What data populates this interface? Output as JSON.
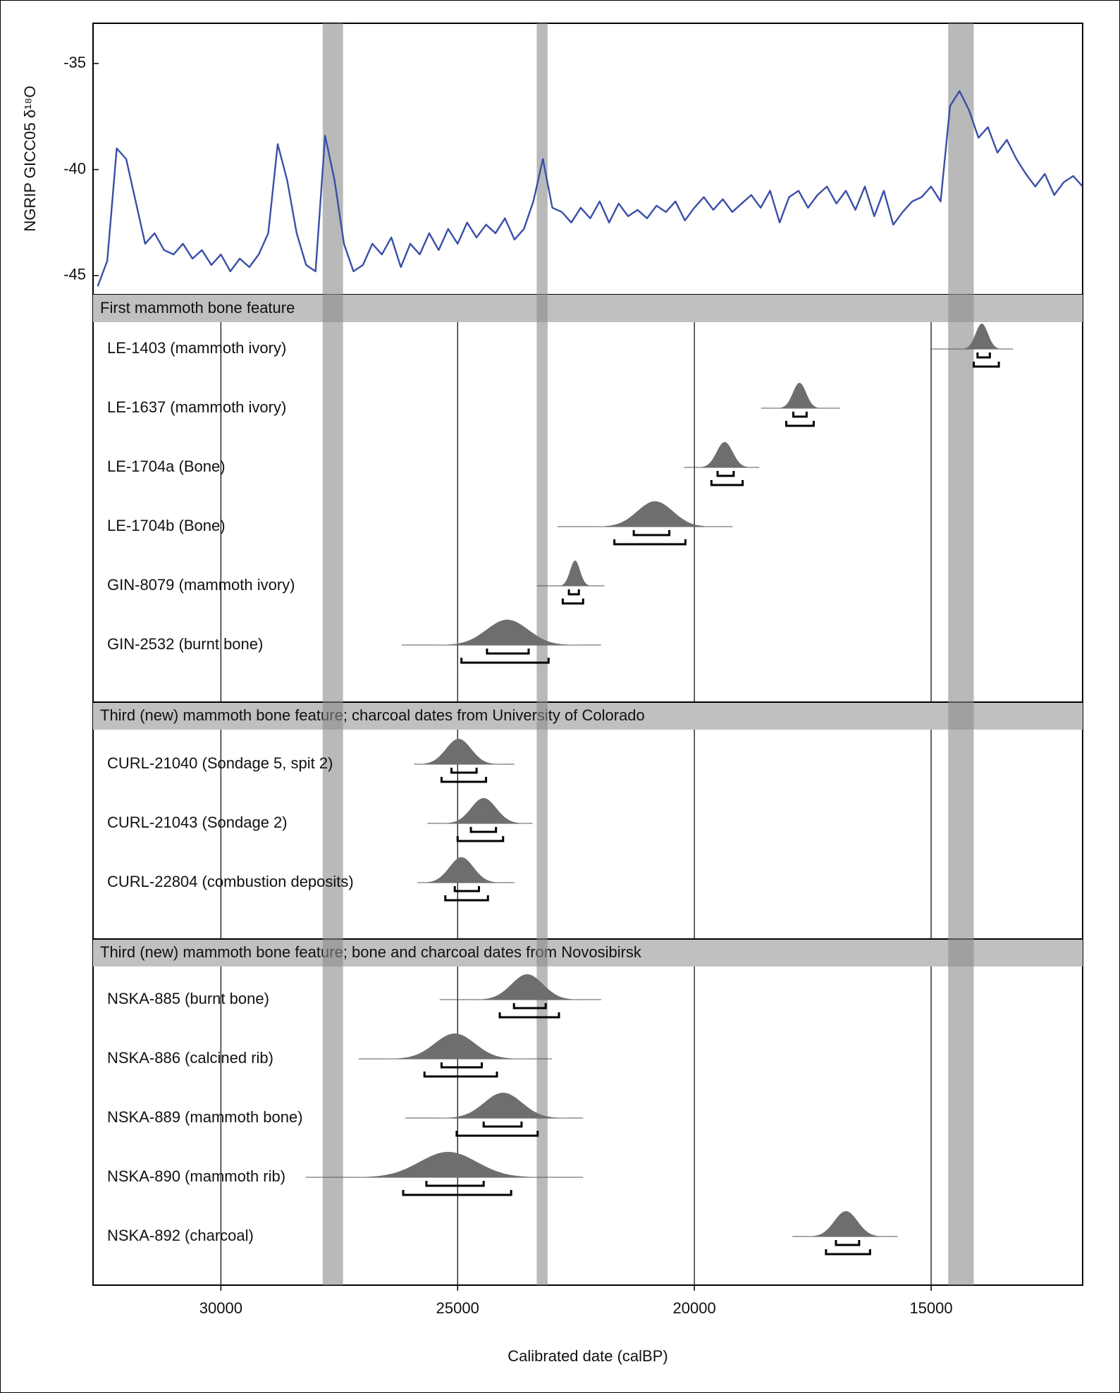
{
  "chart_data": [
    {
      "type": "line",
      "y_label": "NGRIP GICC05 δ¹⁸O",
      "color": "#3a4fa8",
      "xlim": [
        32700,
        11800
      ],
      "ylim": [
        -45.9,
        -33.1
      ],
      "yticks": [
        -35,
        -40,
        -45
      ],
      "bands": [
        [
          27850,
          27420
        ],
        [
          23330,
          23100
        ],
        [
          14640,
          14100
        ]
      ],
      "x": [
        32600,
        32400,
        32200,
        32000,
        31800,
        31600,
        31400,
        31200,
        31000,
        30800,
        30600,
        30400,
        30200,
        30000,
        29800,
        29600,
        29400,
        29200,
        29000,
        28800,
        28600,
        28400,
        28200,
        28000,
        27800,
        27600,
        27400,
        27200,
        27000,
        26800,
        26600,
        26400,
        26200,
        26000,
        25800,
        25600,
        25400,
        25200,
        25000,
        24800,
        24600,
        24400,
        24200,
        24000,
        23800,
        23600,
        23400,
        23200,
        23000,
        22800,
        22600,
        22400,
        22200,
        22000,
        21800,
        21600,
        21400,
        21200,
        21000,
        20800,
        20600,
        20400,
        20200,
        20000,
        19800,
        19600,
        19400,
        19200,
        19000,
        18800,
        18600,
        18400,
        18200,
        18000,
        17800,
        17600,
        17400,
        17200,
        17000,
        16800,
        16600,
        16400,
        16200,
        16000,
        15800,
        15600,
        15400,
        15200,
        15000,
        14800,
        14600,
        14400,
        14200,
        14000,
        13800,
        13600,
        13400,
        13200,
        13000,
        12800,
        12600,
        12400,
        12200,
        12000,
        11800
      ],
      "values": [
        -45.5,
        -44.3,
        -39.0,
        -39.5,
        -41.5,
        -43.5,
        -43.0,
        -43.8,
        -44.0,
        -43.5,
        -44.2,
        -43.8,
        -44.5,
        -44.0,
        -44.8,
        -44.2,
        -44.6,
        -44.0,
        -43.0,
        -38.8,
        -40.5,
        -43.0,
        -44.5,
        -44.8,
        -38.4,
        -40.5,
        -43.5,
        -44.8,
        -44.5,
        -43.5,
        -44.0,
        -43.2,
        -44.6,
        -43.5,
        -44.0,
        -43.0,
        -43.8,
        -42.8,
        -43.5,
        -42.5,
        -43.2,
        -42.6,
        -43.0,
        -42.3,
        -43.3,
        -42.8,
        -41.5,
        -39.5,
        -41.8,
        -42.0,
        -42.5,
        -41.8,
        -42.3,
        -41.5,
        -42.5,
        -41.6,
        -42.2,
        -41.9,
        -42.3,
        -41.7,
        -42.0,
        -41.5,
        -42.4,
        -41.8,
        -41.3,
        -41.9,
        -41.4,
        -42.0,
        -41.6,
        -41.2,
        -41.8,
        -41.0,
        -42.5,
        -41.3,
        -41.0,
        -41.8,
        -41.2,
        -40.8,
        -41.6,
        -41.0,
        -41.9,
        -40.8,
        -42.2,
        -41.0,
        -42.6,
        -42.0,
        -41.5,
        -41.3,
        -40.8,
        -41.5,
        -37.0,
        -36.3,
        -37.2,
        -38.5,
        -38.0,
        -39.2,
        -38.6,
        -39.5,
        -40.2,
        -40.8,
        -40.2,
        -41.2,
        -40.6,
        -40.3,
        -40.8
      ]
    },
    {
      "type": "calibration",
      "x_label": "Calibrated date (calBP)",
      "xlim": [
        32700,
        11800
      ],
      "xticks": [
        30000,
        25000,
        20000,
        15000
      ],
      "curve_color": "#6e6e6e",
      "groups": [
        {
          "title": "First mammoth bone feature",
          "dates": [
            {
              "label": "LE-1403 (mammoth ivory)",
              "extent": [
                15020,
                13270
              ],
              "mode": 13930,
              "range_68": [
                14020,
                13760
              ],
              "range_95": [
                14100,
                13570
              ]
            },
            {
              "label": "LE-1637 (mammoth ivory)",
              "extent": [
                18590,
                16920
              ],
              "mode": 17780,
              "range_68": [
                17910,
                17630
              ],
              "range_95": [
                18060,
                17480
              ]
            },
            {
              "label": "LE-1704a (Bone)",
              "extent": [
                20220,
                18630
              ],
              "mode": 19360,
              "range_68": [
                19510,
                19170
              ],
              "range_95": [
                19640,
                18980
              ]
            },
            {
              "label": "LE-1704b (Bone)",
              "extent": [
                22890,
                19190
              ],
              "mode": 20830,
              "range_68": [
                21280,
                20530
              ],
              "range_95": [
                21690,
                20190
              ]
            },
            {
              "label": "GIN-8079 (mammoth ivory)",
              "extent": [
                23330,
                21900
              ],
              "mode": 22520,
              "range_68": [
                22650,
                22440
              ],
              "range_95": [
                22780,
                22350
              ]
            },
            {
              "label": "GIN-2532 (burnt bone)",
              "extent": [
                26180,
                21970
              ],
              "mode": 23950,
              "range_68": [
                24380,
                23500
              ],
              "range_95": [
                24920,
                23080
              ]
            }
          ]
        },
        {
          "title": "Third (new) mammoth bone feature; charcoal dates from University of Colorado",
          "dates": [
            {
              "label": "CURL-21040 (Sondage 5, spit 2)",
              "extent": [
                25920,
                23800
              ],
              "mode": 24980,
              "range_68": [
                25130,
                24600
              ],
              "range_95": [
                25340,
                24400
              ]
            },
            {
              "label": "CURL-21043 (Sondage 2)",
              "extent": [
                25640,
                23420
              ],
              "mode": 24450,
              "range_68": [
                24720,
                24190
              ],
              "range_95": [
                25000,
                24040
              ]
            },
            {
              "label": "CURL-22804 (combustion deposits)",
              "extent": [
                25850,
                23800
              ],
              "mode": 24920,
              "range_68": [
                25060,
                24550
              ],
              "range_95": [
                25260,
                24360
              ]
            }
          ]
        },
        {
          "title": "Third (new) mammoth bone feature; bone and charcoal dates from Novosibirsk",
          "dates": [
            {
              "label": "NSKA-885 (burnt bone)",
              "extent": [
                25380,
                21970
              ],
              "mode": 23530,
              "range_68": [
                23810,
                23140
              ],
              "range_95": [
                24110,
                22860
              ]
            },
            {
              "label": "NSKA-886 (calcined rib)",
              "extent": [
                27090,
                23010
              ],
              "mode": 25060,
              "range_68": [
                25340,
                24490
              ],
              "range_95": [
                25700,
                24170
              ]
            },
            {
              "label": "NSKA-889 (mammoth bone)",
              "extent": [
                26110,
                22350
              ],
              "mode": 24040,
              "range_68": [
                24450,
                23650
              ],
              "range_95": [
                25020,
                23310
              ]
            },
            {
              "label": "NSKA-890 (mammoth rib)",
              "extent": [
                28210,
                22350
              ],
              "mode": 25200,
              "range_68": [
                25660,
                24450
              ],
              "range_95": [
                26150,
                23870
              ]
            },
            {
              "label": "NSKA-892 (charcoal)",
              "extent": [
                17930,
                15710
              ],
              "mode": 16800,
              "range_68": [
                17010,
                16520
              ],
              "range_95": [
                17220,
                16290
              ]
            }
          ]
        }
      ]
    }
  ]
}
